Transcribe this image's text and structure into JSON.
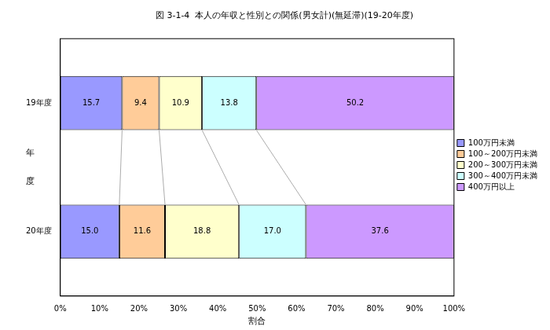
{
  "chart_data": {
    "type": "bar",
    "title": "図 3-1-4  本人の年収と性別との関係(男女計)(無延滞)(19-20年度)",
    "x_label": "割合",
    "y_label": "年度",
    "orientation": "horizontal",
    "stacked": true,
    "data_labels": true,
    "grid": false,
    "legend": "right",
    "categories": [
      "19年度",
      "20年度"
    ],
    "series": [
      {
        "name": "100万円未満",
        "color": "#9999ff",
        "values": [
          15.7,
          15.0
        ],
        "value_labels": [
          "15.7",
          "15.0"
        ]
      },
      {
        "name": "100～200万円未満",
        "color": "#ffcc99",
        "values": [
          9.4,
          11.6
        ],
        "value_labels": [
          "9.4",
          "11.6"
        ]
      },
      {
        "name": "200～300万円未満",
        "color": "#ffffcc",
        "values": [
          10.9,
          18.8
        ],
        "value_labels": [
          "10.9",
          "18.8"
        ]
      },
      {
        "name": "300～400万円未満",
        "color": "#ccffff",
        "values": [
          13.8,
          17.0
        ],
        "value_labels": [
          "13.8",
          "17.0"
        ]
      },
      {
        "name": "400万円以上",
        "color": "#cc99ff",
        "values": [
          50.2,
          37.6
        ],
        "value_labels": [
          "50.2",
          "37.6"
        ]
      }
    ],
    "xlim": [
      0,
      100
    ],
    "xticks": [
      {
        "value": 0,
        "label": "0%"
      },
      {
        "value": 10,
        "label": "10%"
      },
      {
        "value": 20,
        "label": "20%"
      },
      {
        "value": 30,
        "label": "30%"
      },
      {
        "value": 40,
        "label": "40%"
      },
      {
        "value": 50,
        "label": "50%"
      },
      {
        "value": 60,
        "label": "60%"
      },
      {
        "value": 70,
        "label": "70%"
      },
      {
        "value": 80,
        "label": "80%"
      },
      {
        "value": 90,
        "label": "90%"
      },
      {
        "value": 100,
        "label": "100%"
      }
    ]
  }
}
